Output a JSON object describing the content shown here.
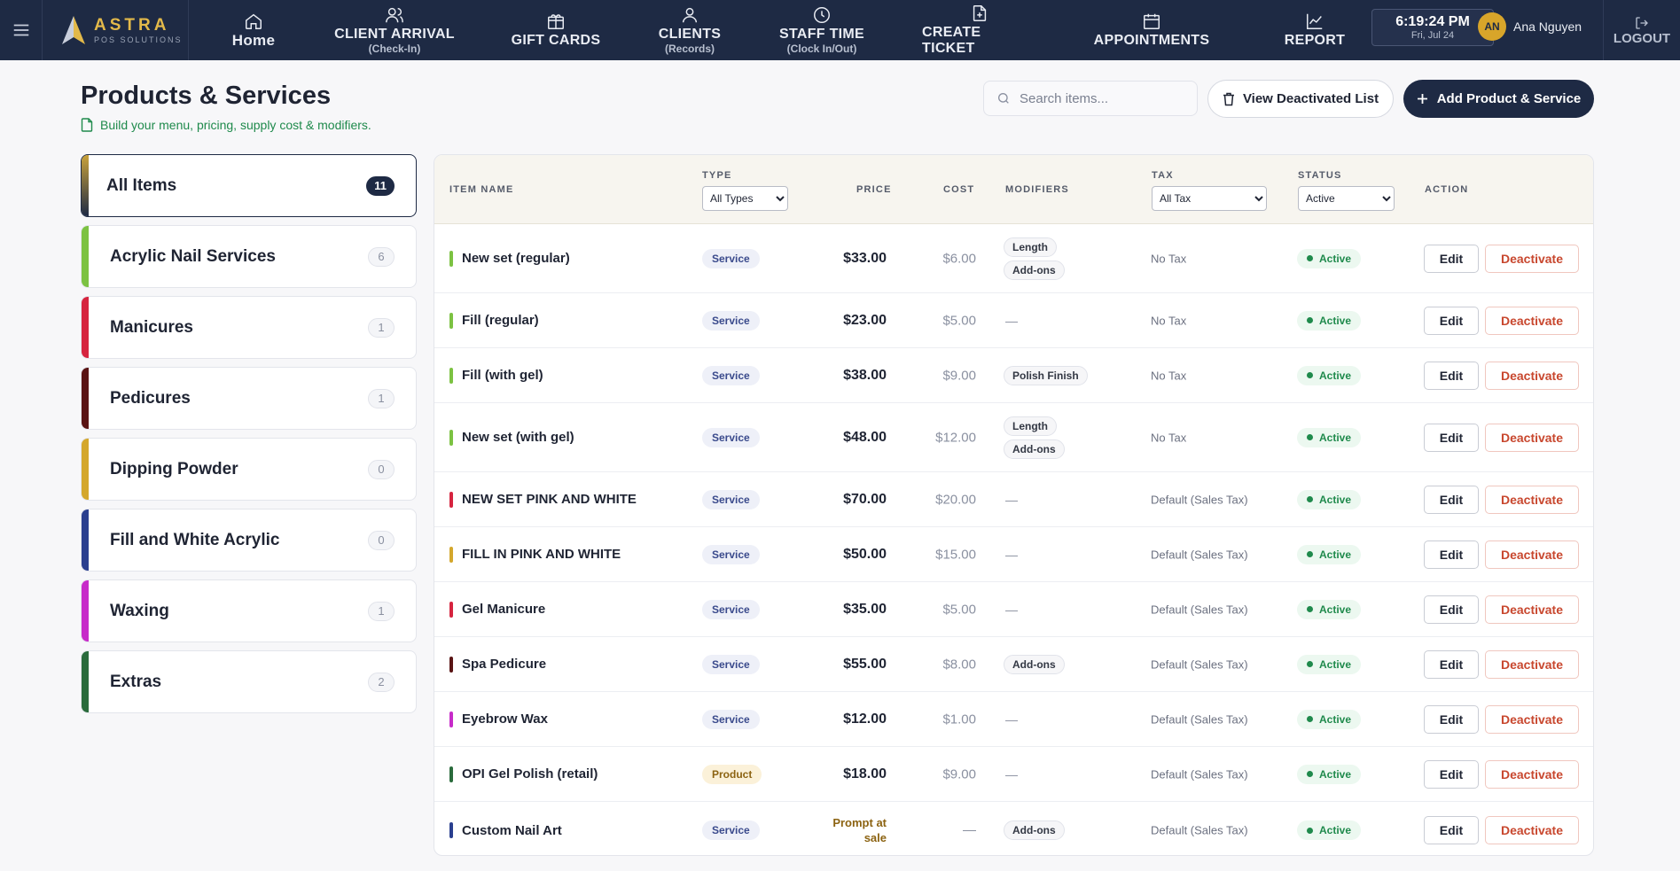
{
  "brand": {
    "name": "ASTRA",
    "sub": "POS SOLUTIONS"
  },
  "nav": [
    {
      "label": "Home",
      "sub": ""
    },
    {
      "label": "CLIENT ARRIVAL",
      "sub": "(Check-In)"
    },
    {
      "label": "GIFT CARDS",
      "sub": ""
    },
    {
      "label": "CLIENTS",
      "sub": "(Records)"
    },
    {
      "label": "STAFF TIME",
      "sub": "(Clock In/Out)"
    },
    {
      "label": "CREATE TICKET",
      "sub": ""
    },
    {
      "label": "APPOINTMENTS",
      "sub": ""
    },
    {
      "label": "REPORT",
      "sub": ""
    }
  ],
  "clock": {
    "time": "6:19:24 PM",
    "date": "Fri, Jul 24"
  },
  "user": {
    "initials": "AN",
    "name": "Ana Nguyen"
  },
  "logout_label": "LOGOUT",
  "header": {
    "title": "Products & Services",
    "subtitle": "Build your menu, pricing, supply cost & modifiers.",
    "search_placeholder": "Search items...",
    "view_deactivated_label": "View Deactivated List",
    "add_label": "Add Product & Service"
  },
  "categories": [
    {
      "label": "All Items",
      "count": "11",
      "color": "#1e2a44"
    },
    {
      "label": "Acrylic Nail Services",
      "count": "6",
      "color": "#7cc242"
    },
    {
      "label": "Manicures",
      "count": "1",
      "color": "#d6243f"
    },
    {
      "label": "Pedicures",
      "count": "1",
      "color": "#5a1414"
    },
    {
      "label": "Dipping Powder",
      "count": "0",
      "color": "#d4a72c"
    },
    {
      "label": "Fill and White Acrylic",
      "count": "0",
      "color": "#2a3f8f"
    },
    {
      "label": "Waxing",
      "count": "1",
      "color": "#c72bc9"
    },
    {
      "label": "Extras",
      "count": "2",
      "color": "#2a6b3c"
    }
  ],
  "table": {
    "headers": {
      "name": "ITEM NAME",
      "type": "TYPE",
      "price": "PRICE",
      "cost": "COST",
      "modifiers": "MODIFIERS",
      "tax": "TAX",
      "status": "STATUS",
      "action": "ACTION"
    },
    "filters": {
      "type": "All Types",
      "tax": "All Tax",
      "status": "Active"
    },
    "edit_label": "Edit",
    "deactivate_label": "Deactivate",
    "rows": [
      {
        "name": "New set (regular)",
        "color": "#7cc242",
        "type": "Service",
        "price": "$33.00",
        "cost": "$6.00",
        "modifiers": [
          "Length",
          "Add-ons"
        ],
        "tax": "No Tax",
        "status": "Active"
      },
      {
        "name": "Fill (regular)",
        "color": "#7cc242",
        "type": "Service",
        "price": "$23.00",
        "cost": "$5.00",
        "modifiers": [],
        "tax": "No Tax",
        "status": "Active"
      },
      {
        "name": "Fill (with gel)",
        "color": "#7cc242",
        "type": "Service",
        "price": "$38.00",
        "cost": "$9.00",
        "modifiers": [
          "Polish Finish"
        ],
        "tax": "No Tax",
        "status": "Active"
      },
      {
        "name": "New set (with gel)",
        "color": "#7cc242",
        "type": "Service",
        "price": "$48.00",
        "cost": "$12.00",
        "modifiers": [
          "Length",
          "Add-ons"
        ],
        "tax": "No Tax",
        "status": "Active"
      },
      {
        "name": "NEW SET PINK AND WHITE",
        "color": "#d6243f",
        "type": "Service",
        "price": "$70.00",
        "cost": "$20.00",
        "modifiers": [],
        "tax": "Default (Sales Tax)",
        "status": "Active"
      },
      {
        "name": "FILL IN PINK AND WHITE",
        "color": "#d4a72c",
        "type": "Service",
        "price": "$50.00",
        "cost": "$15.00",
        "modifiers": [],
        "tax": "Default (Sales Tax)",
        "status": "Active"
      },
      {
        "name": "Gel Manicure",
        "color": "#d6243f",
        "type": "Service",
        "price": "$35.00",
        "cost": "$5.00",
        "modifiers": [],
        "tax": "Default (Sales Tax)",
        "status": "Active"
      },
      {
        "name": "Spa Pedicure",
        "color": "#5a1414",
        "type": "Service",
        "price": "$55.00",
        "cost": "$8.00",
        "modifiers": [
          "Add-ons"
        ],
        "tax": "Default (Sales Tax)",
        "status": "Active"
      },
      {
        "name": "Eyebrow Wax",
        "color": "#c72bc9",
        "type": "Service",
        "price": "$12.00",
        "cost": "$1.00",
        "modifiers": [],
        "tax": "Default (Sales Tax)",
        "status": "Active"
      },
      {
        "name": "OPI Gel Polish (retail)",
        "color": "#2a6b3c",
        "type": "Product",
        "price": "$18.00",
        "cost": "$9.00",
        "modifiers": [],
        "tax": "Default (Sales Tax)",
        "status": "Active"
      },
      {
        "name": "Custom Nail Art",
        "color": "#2a3f8f",
        "type": "Service",
        "price": "Prompt at sale",
        "cost": "—",
        "modifiers": [
          "Add-ons"
        ],
        "tax": "Default (Sales Tax)",
        "status": "Active"
      }
    ]
  },
  "empty_modifier": "—"
}
